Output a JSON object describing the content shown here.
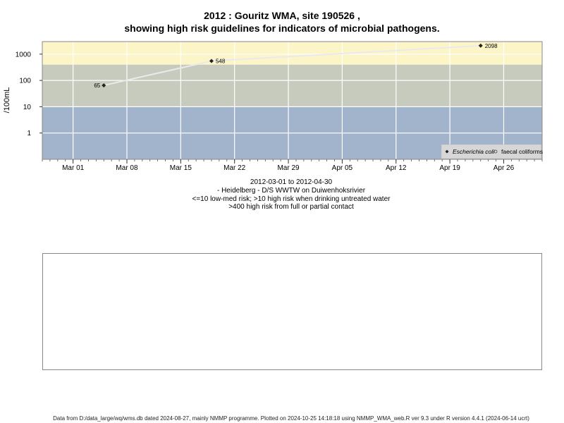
{
  "chart_data": {
    "type": "scatter",
    "title": "2012 : Gouritz WMA, site 190526 ,",
    "subtitle": "showing high risk guidelines for indicators of microbial pathogens.",
    "ylabel": "/100mL",
    "y_scale": "log",
    "y_ticks": [
      "1",
      "10",
      "100",
      "1000"
    ],
    "y_tick_values": [
      1,
      10,
      100,
      1000
    ],
    "ylim": [
      0.1,
      3000
    ],
    "xlim": [
      "2012-02-26",
      "2012-05-01"
    ],
    "x_ticks": [
      "Mar 01",
      "Mar 08",
      "Mar 15",
      "Mar 22",
      "Mar 29",
      "Apr 05",
      "Apr 12",
      "Apr 19",
      "Apr 26"
    ],
    "x_tick_dates": [
      "2012-03-01",
      "2012-03-08",
      "2012-03-15",
      "2012-03-22",
      "2012-03-29",
      "2012-04-05",
      "2012-04-12",
      "2012-04-19",
      "2012-04-26"
    ],
    "risk_bands": [
      {
        "from": 0.1,
        "to": 10,
        "color": "#a2b3cc"
      },
      {
        "from": 10,
        "to": 400,
        "color": "#c6cbbe"
      },
      {
        "from": 400,
        "to": 3000,
        "color": "#fcf5c8"
      }
    ],
    "grid": true,
    "legend_position": "bottom-right",
    "series": [
      {
        "name": "Escherichia coli",
        "color": "#222222",
        "marker": "filled-diamond",
        "points": [
          {
            "x": "2012-03-05",
            "y": 65,
            "label": "65"
          },
          {
            "x": "2012-03-19",
            "y": 548,
            "label": "548"
          },
          {
            "x": "2012-04-23",
            "y": 2098,
            "label": "2098"
          }
        ]
      },
      {
        "name": "faecal coliforms",
        "color": "#444444",
        "marker": "open-circle",
        "points": []
      }
    ],
    "captions": [
      "2012-03-01 to 2012-04-30",
      "- Heidelberg - D/S WWTW on Duiwenhoksrivier",
      "<=10 low-med risk; >10 high risk when drinking untreated water",
      ">400 high risk from full or partial contact"
    ]
  },
  "footer": "Data from D:/data_large/wq/wms.db dated 2024-08-27, mainly NMMP programme. Plotted on 2024-10-25 14:18:18 using NMMP_WMA_web.R ver 9.3 under R version 4.4.1 (2024-06-14 ucrt)"
}
